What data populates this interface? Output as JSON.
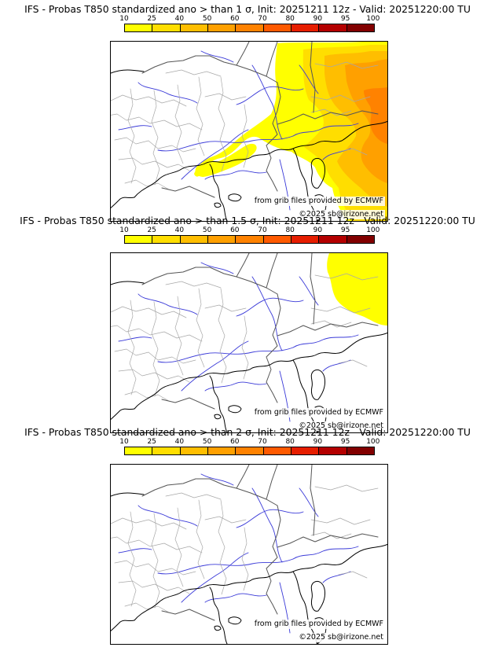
{
  "legend": {
    "ticks": [
      "10",
      "25",
      "40",
      "50",
      "60",
      "70",
      "80",
      "90",
      "95",
      "100"
    ],
    "colors": [
      "#ffff00",
      "#ffde00",
      "#ffbe00",
      "#ffa000",
      "#ff8200",
      "#ff5a00",
      "#e61e00",
      "#b40000",
      "#820000"
    ]
  },
  "panels": [
    {
      "title": "IFS - Probas T850  standardized ano > than 1 σ, Init: 20251211 12z - Valid: 20251220:00 TU",
      "source": "from grib files provided by ECMWF",
      "copyright": "©2025 sb@irizone.net"
    },
    {
      "title": "IFS - Probas T850  standardized ano > than 1.5 σ, Init: 20251211 12z - Valid: 20251220:00 TU",
      "source": "from grib files provided by ECMWF",
      "copyright": "©2025 sb@irizone.net"
    },
    {
      "title": "IFS - Probas T850  standardized ano > than 2 σ, Init: 20251211 12z - Valid: 20251220:00 TU",
      "source": "from grib files provided by ECMWF",
      "copyright": "©2025 sb@irizone.net"
    }
  ]
}
